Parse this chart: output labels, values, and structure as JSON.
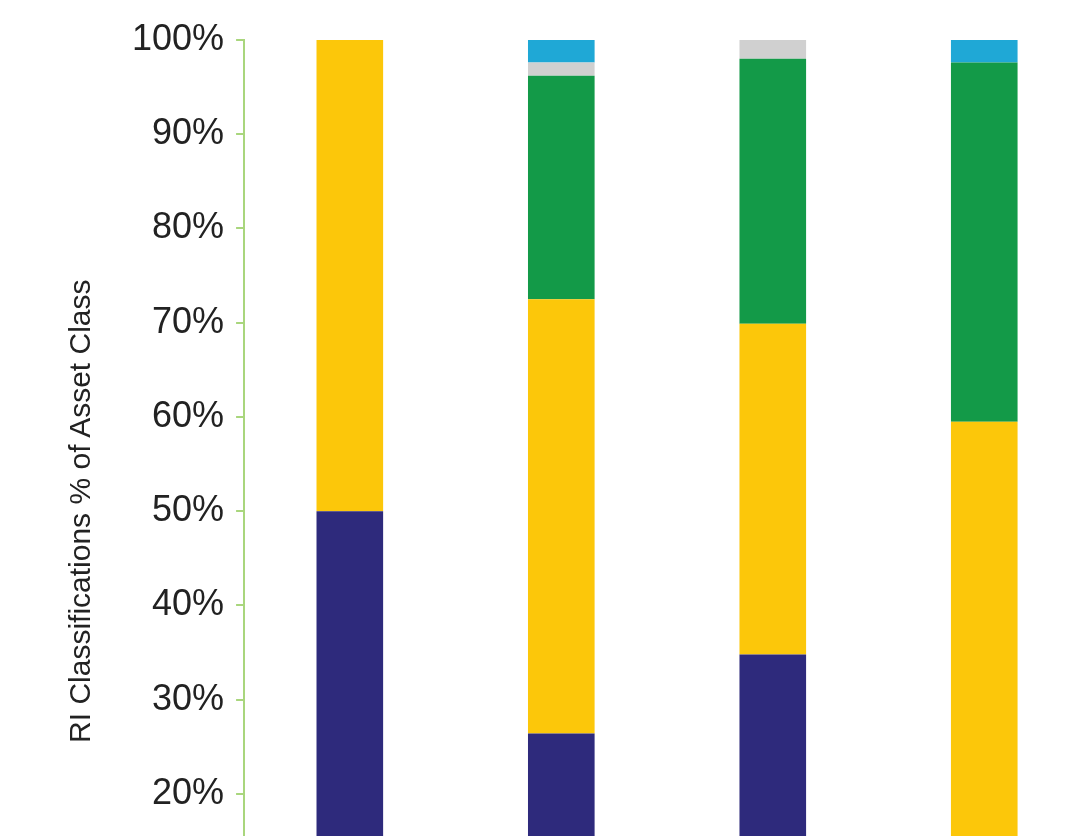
{
  "chart_data": {
    "type": "bar",
    "stacked": true,
    "ylabel": "RI Classifications % of Asset Class",
    "categories": [
      null,
      null,
      null,
      null
    ],
    "series": [
      {
        "color": "#2e2a7c",
        "values": [
          50,
          26.4,
          34.8,
          null
        ]
      },
      {
        "color": "#fcc70a",
        "values": [
          50,
          46.1,
          35.1,
          59.5
        ]
      },
      {
        "color": "#139a48",
        "values": [
          null,
          23.7,
          28.1,
          38.1
        ]
      },
      {
        "color": "#d0d0d0",
        "values": [
          null,
          1.4,
          2,
          null
        ]
      },
      {
        "color": "#1fa8d6",
        "values": [
          null,
          2.4,
          null,
          2.4
        ]
      }
    ],
    "ylim": [
      0,
      100
    ],
    "yticks": [
      {
        "value": 20,
        "label": "20%"
      },
      {
        "value": 30,
        "label": "30%"
      },
      {
        "value": 40,
        "label": "40%"
      },
      {
        "value": 50,
        "label": "50%"
      },
      {
        "value": 60,
        "label": "60%"
      },
      {
        "value": 70,
        "label": "70%"
      },
      {
        "value": 80,
        "label": "80%"
      },
      {
        "value": 90,
        "label": "90%"
      },
      {
        "value": 100,
        "label": "100%"
      }
    ],
    "tick_labels": "y"
  }
}
